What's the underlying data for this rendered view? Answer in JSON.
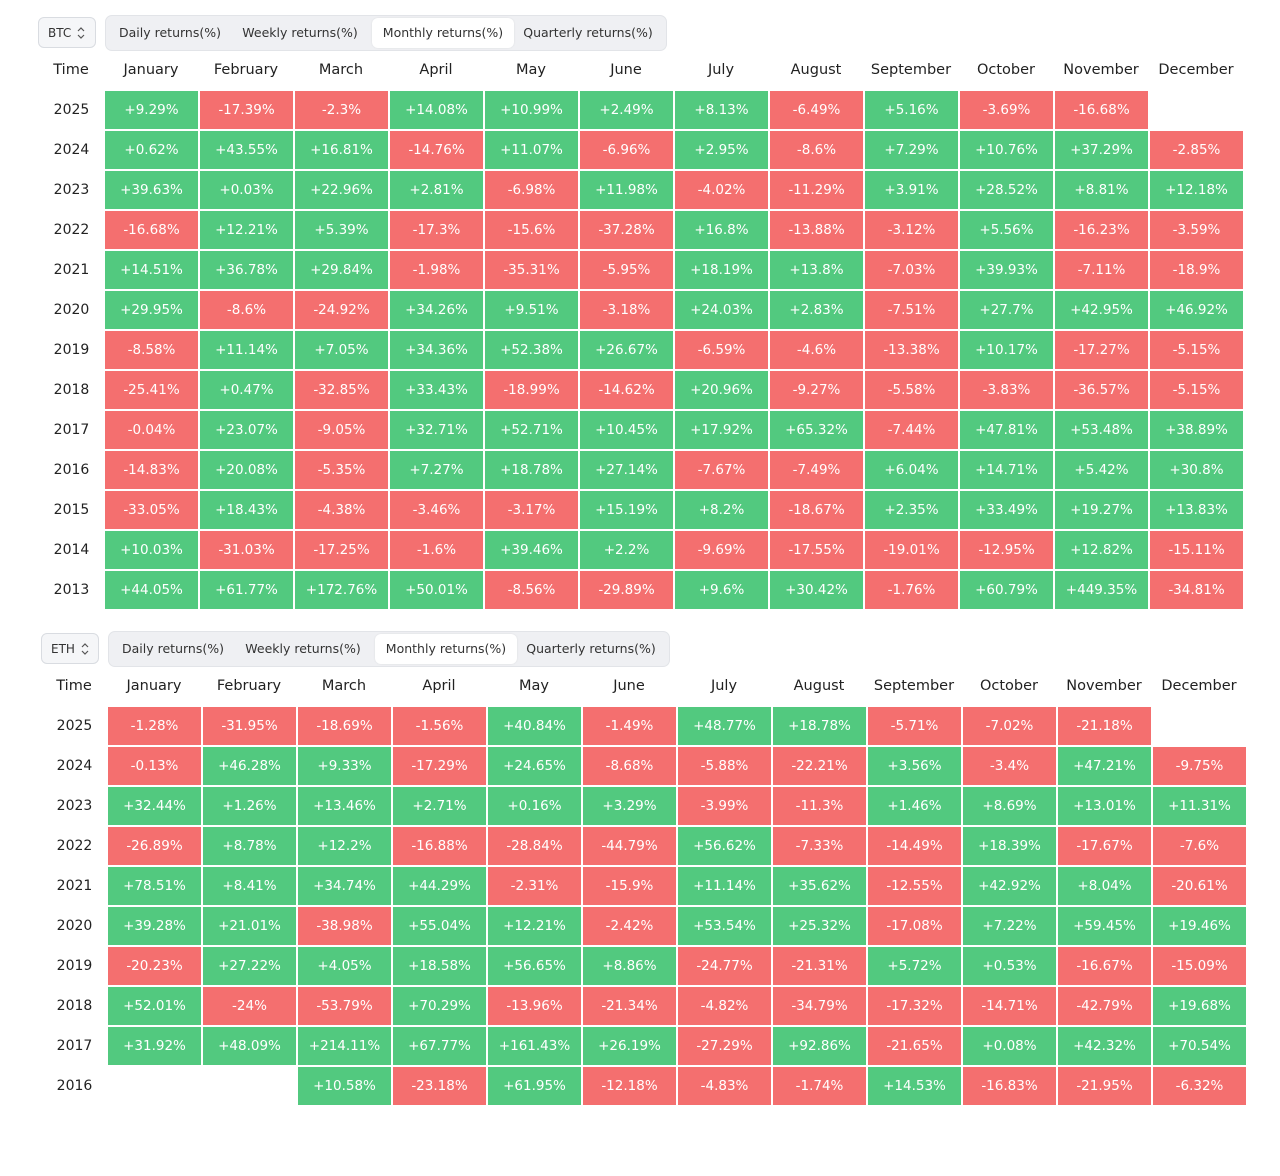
{
  "colors": {
    "positive": "#52c97f",
    "negative": "#f46f6f"
  },
  "panels": [
    {
      "asset": "BTC",
      "tabs": [
        "Daily returns(%)",
        "Weekly returns(%)",
        "Monthly returns(%)",
        "Quarterly returns(%)"
      ],
      "active_tab": 2,
      "columns": [
        "Time",
        "January",
        "February",
        "March",
        "April",
        "May",
        "June",
        "July",
        "August",
        "September",
        "October",
        "November",
        "December"
      ],
      "rows": [
        [
          "2025",
          "+9.29%",
          "-17.39%",
          "-2.3%",
          "+14.08%",
          "+10.99%",
          "+2.49%",
          "+8.13%",
          "-6.49%",
          "+5.16%",
          "-3.69%",
          "-16.68%",
          null
        ],
        [
          "2024",
          "+0.62%",
          "+43.55%",
          "+16.81%",
          "-14.76%",
          "+11.07%",
          "-6.96%",
          "+2.95%",
          "-8.6%",
          "+7.29%",
          "+10.76%",
          "+37.29%",
          "-2.85%"
        ],
        [
          "2023",
          "+39.63%",
          "+0.03%",
          "+22.96%",
          "+2.81%",
          "-6.98%",
          "+11.98%",
          "-4.02%",
          "-11.29%",
          "+3.91%",
          "+28.52%",
          "+8.81%",
          "+12.18%"
        ],
        [
          "2022",
          "-16.68%",
          "+12.21%",
          "+5.39%",
          "-17.3%",
          "-15.6%",
          "-37.28%",
          "+16.8%",
          "-13.88%",
          "-3.12%",
          "+5.56%",
          "-16.23%",
          "-3.59%"
        ],
        [
          "2021",
          "+14.51%",
          "+36.78%",
          "+29.84%",
          "-1.98%",
          "-35.31%",
          "-5.95%",
          "+18.19%",
          "+13.8%",
          "-7.03%",
          "+39.93%",
          "-7.11%",
          "-18.9%"
        ],
        [
          "2020",
          "+29.95%",
          "-8.6%",
          "-24.92%",
          "+34.26%",
          "+9.51%",
          "-3.18%",
          "+24.03%",
          "+2.83%",
          "-7.51%",
          "+27.7%",
          "+42.95%",
          "+46.92%"
        ],
        [
          "2019",
          "-8.58%",
          "+11.14%",
          "+7.05%",
          "+34.36%",
          "+52.38%",
          "+26.67%",
          "-6.59%",
          "-4.6%",
          "-13.38%",
          "+10.17%",
          "-17.27%",
          "-5.15%"
        ],
        [
          "2018",
          "-25.41%",
          "+0.47%",
          "-32.85%",
          "+33.43%",
          "-18.99%",
          "-14.62%",
          "+20.96%",
          "-9.27%",
          "-5.58%",
          "-3.83%",
          "-36.57%",
          "-5.15%"
        ],
        [
          "2017",
          "-0.04%",
          "+23.07%",
          "-9.05%",
          "+32.71%",
          "+52.71%",
          "+10.45%",
          "+17.92%",
          "+65.32%",
          "-7.44%",
          "+47.81%",
          "+53.48%",
          "+38.89%"
        ],
        [
          "2016",
          "-14.83%",
          "+20.08%",
          "-5.35%",
          "+7.27%",
          "+18.78%",
          "+27.14%",
          "-7.67%",
          "-7.49%",
          "+6.04%",
          "+14.71%",
          "+5.42%",
          "+30.8%"
        ],
        [
          "2015",
          "-33.05%",
          "+18.43%",
          "-4.38%",
          "-3.46%",
          "-3.17%",
          "+15.19%",
          "+8.2%",
          "-18.67%",
          "+2.35%",
          "+33.49%",
          "+19.27%",
          "+13.83%"
        ],
        [
          "2014",
          "+10.03%",
          "-31.03%",
          "-17.25%",
          "-1.6%",
          "+39.46%",
          "+2.2%",
          "-9.69%",
          "-17.55%",
          "-19.01%",
          "-12.95%",
          "+12.82%",
          "-15.11%"
        ],
        [
          "2013",
          "+44.05%",
          "+61.77%",
          "+172.76%",
          "+50.01%",
          "-8.56%",
          "-29.89%",
          "+9.6%",
          "+30.42%",
          "-1.76%",
          "+60.79%",
          "+449.35%",
          "-34.81%"
        ]
      ]
    },
    {
      "asset": "ETH",
      "tabs": [
        "Daily returns(%)",
        "Weekly returns(%)",
        "Monthly returns(%)",
        "Quarterly returns(%)"
      ],
      "active_tab": 2,
      "columns": [
        "Time",
        "January",
        "February",
        "March",
        "April",
        "May",
        "June",
        "July",
        "August",
        "September",
        "October",
        "November",
        "December"
      ],
      "rows": [
        [
          "2025",
          "-1.28%",
          "-31.95%",
          "-18.69%",
          "-1.56%",
          "+40.84%",
          "-1.49%",
          "+48.77%",
          "+18.78%",
          "-5.71%",
          "-7.02%",
          "-21.18%",
          null
        ],
        [
          "2024",
          "-0.13%",
          "+46.28%",
          "+9.33%",
          "-17.29%",
          "+24.65%",
          "-8.68%",
          "-5.88%",
          "-22.21%",
          "+3.56%",
          "-3.4%",
          "+47.21%",
          "-9.75%"
        ],
        [
          "2023",
          "+32.44%",
          "+1.26%",
          "+13.46%",
          "+2.71%",
          "+0.16%",
          "+3.29%",
          "-3.99%",
          "-11.3%",
          "+1.46%",
          "+8.69%",
          "+13.01%",
          "+11.31%"
        ],
        [
          "2022",
          "-26.89%",
          "+8.78%",
          "+12.2%",
          "-16.88%",
          "-28.84%",
          "-44.79%",
          "+56.62%",
          "-7.33%",
          "-14.49%",
          "+18.39%",
          "-17.67%",
          "-7.6%"
        ],
        [
          "2021",
          "+78.51%",
          "+8.41%",
          "+34.74%",
          "+44.29%",
          "-2.31%",
          "-15.9%",
          "+11.14%",
          "+35.62%",
          "-12.55%",
          "+42.92%",
          "+8.04%",
          "-20.61%"
        ],
        [
          "2020",
          "+39.28%",
          "+21.01%",
          "-38.98%",
          "+55.04%",
          "+12.21%",
          "-2.42%",
          "+53.54%",
          "+25.32%",
          "-17.08%",
          "+7.22%",
          "+59.45%",
          "+19.46%"
        ],
        [
          "2019",
          "-20.23%",
          "+27.22%",
          "+4.05%",
          "+18.58%",
          "+56.65%",
          "+8.86%",
          "-24.77%",
          "-21.31%",
          "+5.72%",
          "+0.53%",
          "-16.67%",
          "-15.09%"
        ],
        [
          "2018",
          "+52.01%",
          "-24%",
          "-53.79%",
          "+70.29%",
          "-13.96%",
          "-21.34%",
          "-4.82%",
          "-34.79%",
          "-17.32%",
          "-14.71%",
          "-42.79%",
          "+19.68%"
        ],
        [
          "2017",
          "+31.92%",
          "+48.09%",
          "+214.11%",
          "+67.77%",
          "+161.43%",
          "+26.19%",
          "-27.29%",
          "+92.86%",
          "-21.65%",
          "+0.08%",
          "+42.32%",
          "+70.54%"
        ],
        [
          "2016",
          null,
          null,
          "+10.58%",
          "-23.18%",
          "+61.95%",
          "-12.18%",
          "-4.83%",
          "-1.74%",
          "+14.53%",
          "-16.83%",
          "-21.95%",
          "-6.32%"
        ]
      ]
    }
  ]
}
